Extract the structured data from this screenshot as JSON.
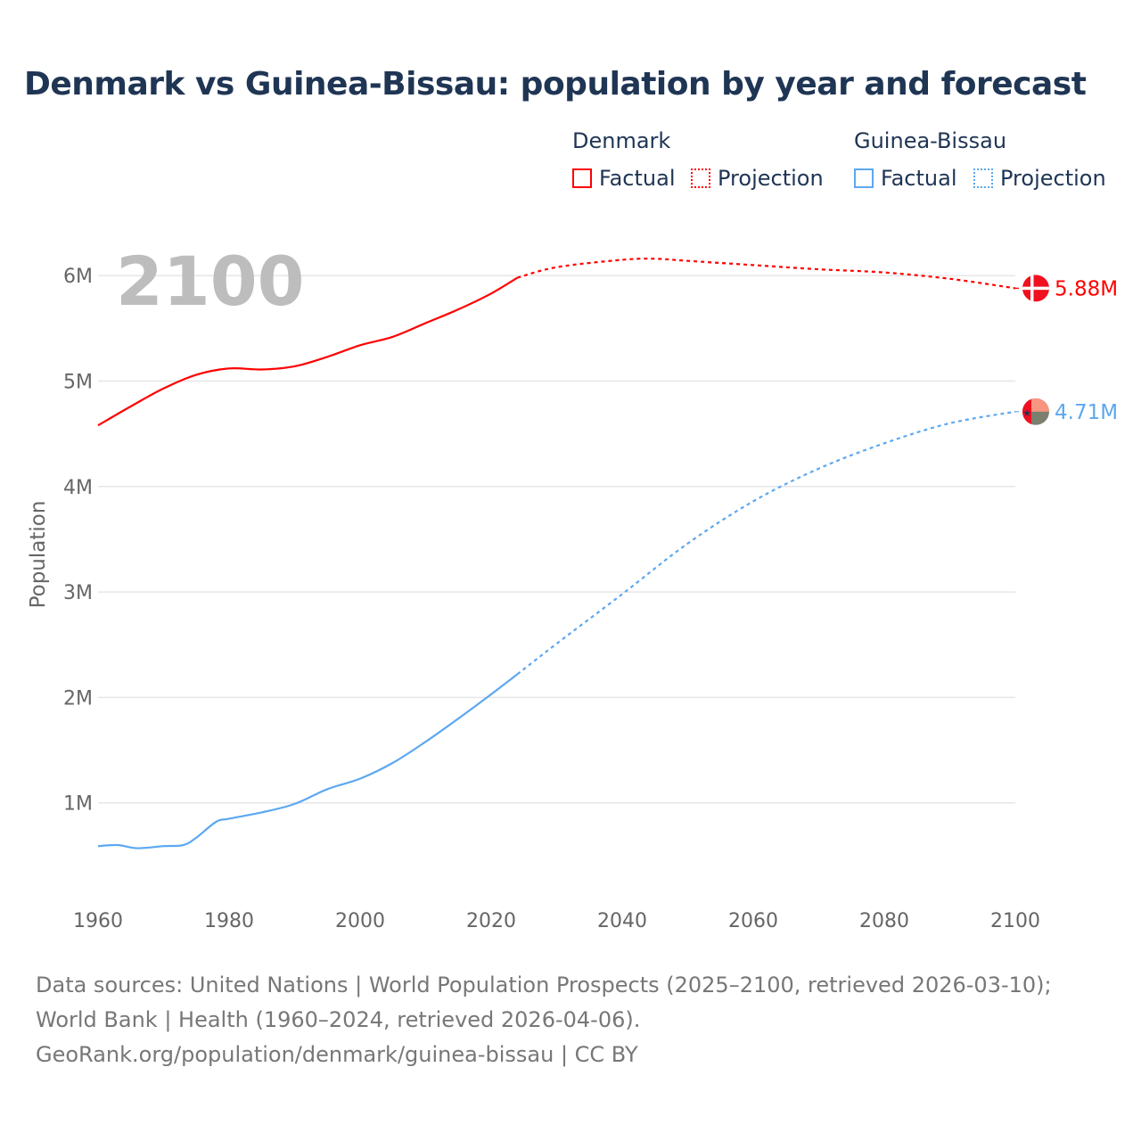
{
  "chart_data": {
    "type": "line",
    "title": "Denmark vs Guinea-Bissau: population by year and forecast",
    "xlabel": "",
    "ylabel": "Population",
    "xlim": [
      1960,
      2100
    ],
    "ylim": [
      0,
      6.5
    ],
    "grid": true,
    "x_ticks": [
      "1960",
      "1980",
      "2000",
      "2020",
      "2040",
      "2060",
      "2080",
      "2100"
    ],
    "y_ticks": [
      {
        "v": 1,
        "label": "1M"
      },
      {
        "v": 2,
        "label": "2M"
      },
      {
        "v": 3,
        "label": "3M"
      },
      {
        "v": 4,
        "label": "4M"
      },
      {
        "v": 5,
        "label": "5M"
      },
      {
        "v": 6,
        "label": "6M"
      }
    ],
    "year_label": "2100",
    "legend_position": "top-right",
    "series": [
      {
        "name": "Denmark",
        "color": "#ff0000",
        "end_label": "5.88M",
        "factual": {
          "x": [
            1960,
            1965,
            1970,
            1975,
            1980,
            1985,
            1990,
            1995,
            2000,
            2005,
            2010,
            2015,
            2020,
            2024
          ],
          "y": [
            4.58,
            4.76,
            4.93,
            5.06,
            5.12,
            5.11,
            5.14,
            5.23,
            5.34,
            5.42,
            5.55,
            5.68,
            5.83,
            5.98
          ]
        },
        "projection": {
          "x": [
            2024,
            2030,
            2040,
            2045,
            2050,
            2060,
            2070,
            2080,
            2090,
            2100
          ],
          "y": [
            5.98,
            6.08,
            6.15,
            6.16,
            6.14,
            6.1,
            6.06,
            6.03,
            5.97,
            5.88
          ]
        }
      },
      {
        "name": "Guinea-Bissau",
        "color": "#5ca8f0",
        "end_label": "4.71M",
        "factual": {
          "x": [
            1960,
            1963,
            1966,
            1970,
            1973,
            1975,
            1978,
            1980,
            1985,
            1990,
            1995,
            2000,
            2005,
            2010,
            2015,
            2020,
            2024
          ],
          "y": [
            0.59,
            0.6,
            0.57,
            0.59,
            0.6,
            0.67,
            0.82,
            0.85,
            0.91,
            0.99,
            1.13,
            1.23,
            1.38,
            1.58,
            1.8,
            2.03,
            2.22
          ]
        },
        "projection": {
          "x": [
            2024,
            2030,
            2040,
            2050,
            2060,
            2070,
            2080,
            2090,
            2100
          ],
          "y": [
            2.22,
            2.51,
            2.98,
            3.46,
            3.86,
            4.17,
            4.41,
            4.6,
            4.71
          ]
        }
      }
    ]
  },
  "legend": {
    "denmark": "Denmark",
    "guinea_bissau": "Guinea-Bissau",
    "factual": "Factual",
    "projection": "Projection"
  },
  "footer": {
    "sources": "Data sources: United Nations | World Population Prospects (2025–2100, retrieved 2026-03-10); World Bank | Health (1960–2024, retrieved 2026-04-06).",
    "link": "GeoRank.org/population/denmark/guinea-bissau | CC BY"
  }
}
